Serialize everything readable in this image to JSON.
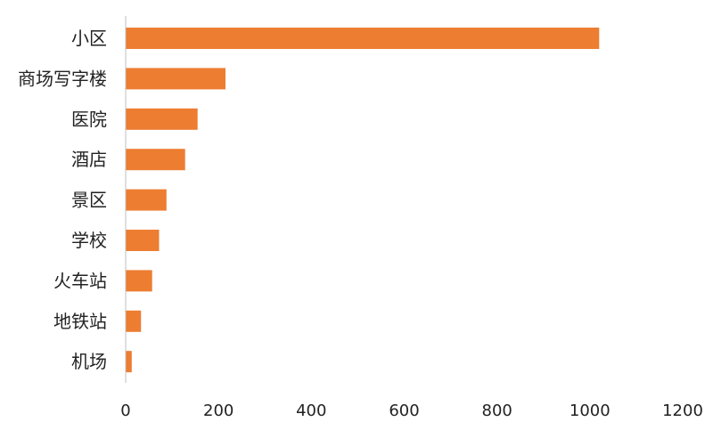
{
  "chart_data": {
    "type": "bar",
    "orientation": "horizontal",
    "categories": [
      "小区",
      "商场写字楼",
      "医院",
      "酒店",
      "景区",
      "学校",
      "火车站",
      "地铁站",
      "机场"
    ],
    "values": [
      1020,
      215,
      155,
      128,
      88,
      72,
      57,
      33,
      13
    ],
    "xlim": [
      0,
      1200
    ],
    "xticks": [
      0,
      200,
      400,
      600,
      800,
      1000,
      1200
    ],
    "grid": false,
    "bar_color": "#ED7D31",
    "axis_color": "#BFBFBF"
  }
}
